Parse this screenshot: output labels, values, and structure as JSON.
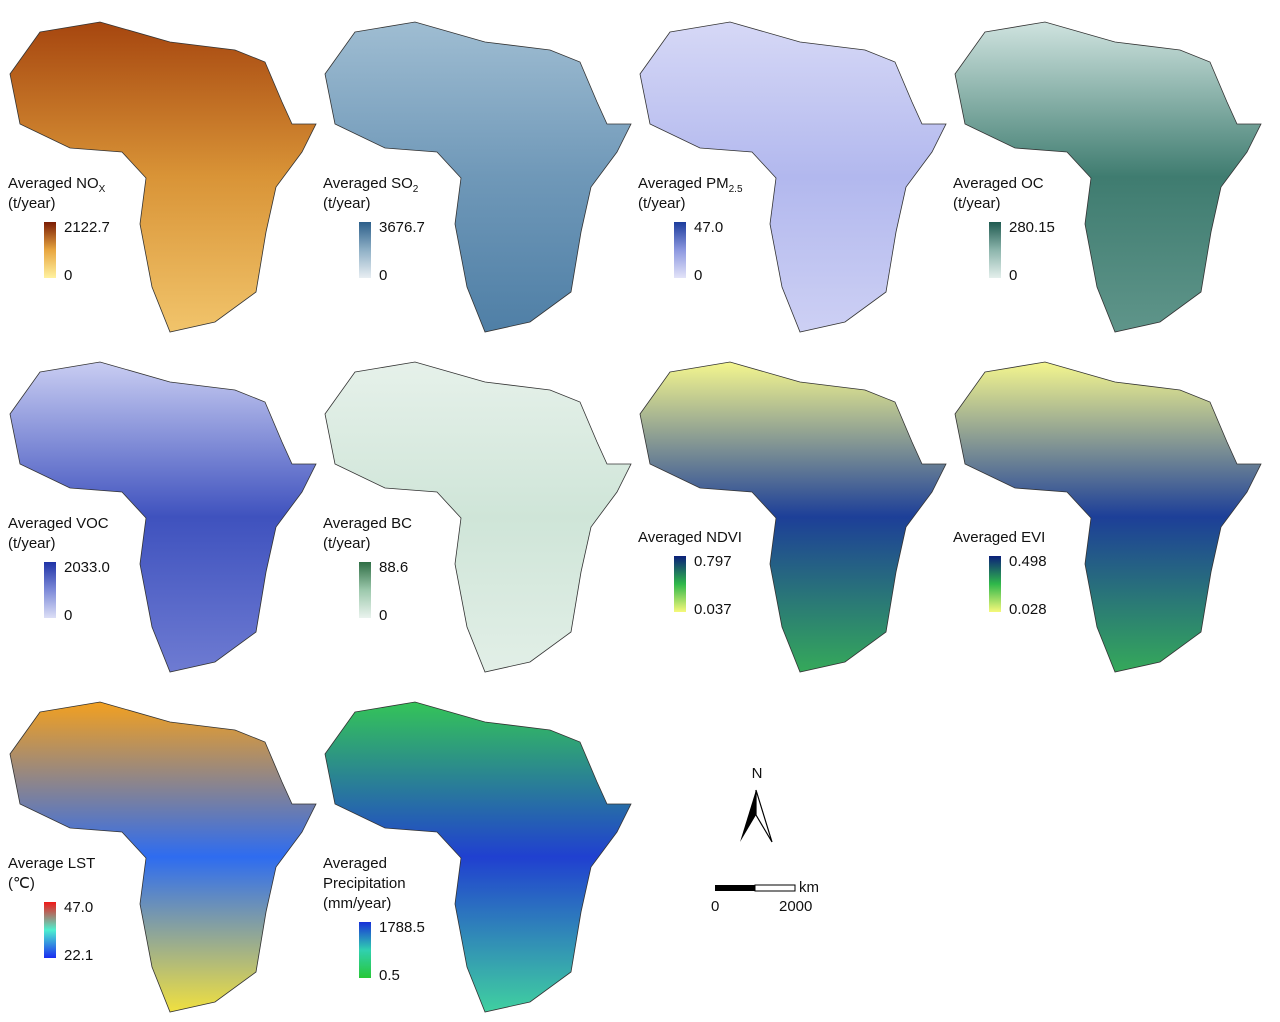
{
  "panels": [
    {
      "title_lines": [
        "Averaged NO"
      ],
      "subscript": "X",
      "unit": "(t/year)",
      "max": "2122.7",
      "min": "0",
      "colors": [
        "#fff2a0",
        "#e8a640",
        "#7a1c05"
      ],
      "map_colors": [
        "#a6460f",
        "#d99437",
        "#f1c46b"
      ]
    },
    {
      "title_lines": [
        "Averaged SO"
      ],
      "subscript": "2",
      "unit": "(t/year)",
      "max": "3676.7",
      "min": "0",
      "colors": [
        "#e8eef2",
        "#8fb0c6",
        "#2c5f8a"
      ],
      "map_colors": [
        "#9fbdd2",
        "#6f98b8",
        "#4f7fa6"
      ]
    },
    {
      "title_lines": [
        "Averaged PM"
      ],
      "subscript": "2.5",
      "unit": "(t/year)",
      "max": "47.0",
      "min": "0",
      "colors": [
        "#e3e3f8",
        "#8c98e0",
        "#1c3c9c"
      ],
      "map_colors": [
        "#d6d8f6",
        "#b2b8ee",
        "#cdd0f4"
      ]
    },
    {
      "title_lines": [
        "Averaged OC"
      ],
      "subscript": "",
      "unit": "(t/year)",
      "max": "280.15",
      "min": "0",
      "colors": [
        "#e4efec",
        "#8cb5ac",
        "#1f5a50"
      ],
      "map_colors": [
        "#cfe3df",
        "#3f7c70",
        "#5f958a"
      ]
    },
    {
      "title_lines": [
        "Averaged VOC"
      ],
      "subscript": "",
      "unit": "(t/year)",
      "max": "2033.0",
      "min": "0",
      "colors": [
        "#dcdff6",
        "#7d8ad8",
        "#1f33a6"
      ],
      "map_colors": [
        "#c9cdf2",
        "#3f52be",
        "#6e7bd2"
      ]
    },
    {
      "title_lines": [
        "Averaged BC"
      ],
      "subscript": "",
      "unit": "(t/year)",
      "max": "88.6",
      "min": "0",
      "colors": [
        "#eaf3ee",
        "#9cc8ac",
        "#2f6e45"
      ],
      "map_colors": [
        "#e6f1ea",
        "#cfe5d8",
        "#e2efe7"
      ]
    },
    {
      "title_lines": [
        "Averaged NDVI"
      ],
      "subscript": "",
      "unit": "",
      "max": "0.797",
      "min": "0.037",
      "colors": [
        "#f6f97a",
        "#2fb84a",
        "#0b1f7a"
      ],
      "map_colors": [
        "#f4f68e",
        "#1d3f98",
        "#35a95a"
      ]
    },
    {
      "title_lines": [
        "Averaged EVI"
      ],
      "subscript": "",
      "unit": "",
      "max": "0.498",
      "min": "0.028",
      "colors": [
        "#f6f97a",
        "#2fb84a",
        "#0b1f7a"
      ],
      "map_colors": [
        "#f4f68e",
        "#1d3f98",
        "#35a95a"
      ]
    },
    {
      "title_lines": [
        "Average LST"
      ],
      "subscript": "",
      "unit": "(℃)",
      "max": "47.0",
      "min": "22.1",
      "colors": [
        "#1a2cf0",
        "#4ef0d0",
        "#f01818"
      ],
      "map_colors": [
        "#f2a020",
        "#2e6cf0",
        "#f0e040"
      ]
    },
    {
      "title_lines": [
        "Averaged",
        "Precipitation"
      ],
      "subscript": "",
      "unit": "(mm/year)",
      "max": "1788.5",
      "min": "0.5",
      "colors": [
        "#28c838",
        "#30d0b0",
        "#1830d8"
      ],
      "map_colors": [
        "#34c458",
        "#2040d0",
        "#40d0a0"
      ]
    }
  ],
  "north_label": "N",
  "scale_unit": "km",
  "scale_start": "0",
  "scale_end": "2000"
}
